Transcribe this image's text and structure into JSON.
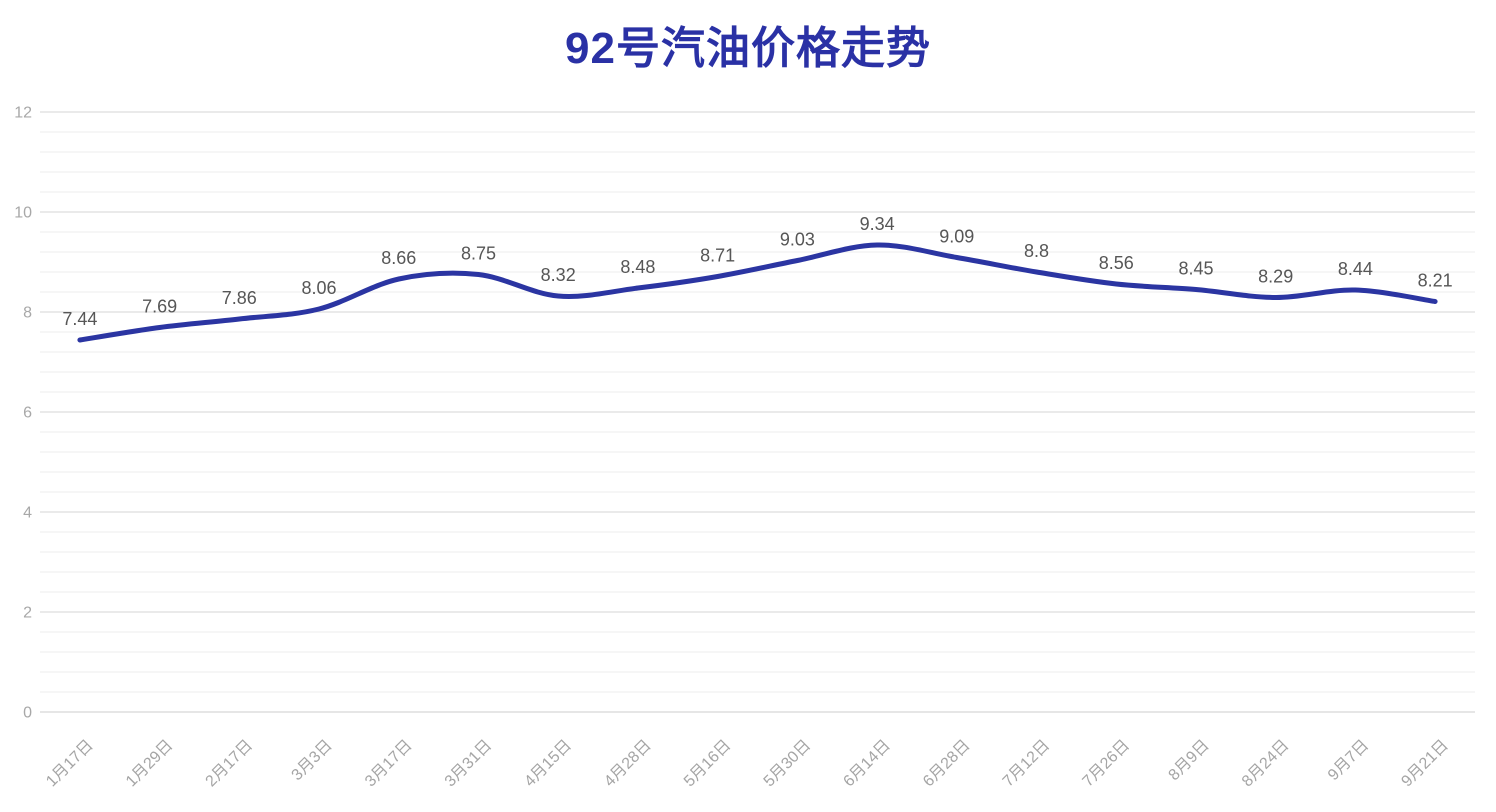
{
  "chart_data": {
    "type": "line",
    "title": "92号汽油价格走势",
    "categories": [
      "1月17日",
      "1月29日",
      "2月17日",
      "3月3日",
      "3月17日",
      "3月31日",
      "4月15日",
      "4月28日",
      "5月16日",
      "5月30日",
      "6月14日",
      "6月28日",
      "7月12日",
      "7月26日",
      "8月9日",
      "8月24日",
      "9月7日",
      "9月21日"
    ],
    "values": [
      7.44,
      7.69,
      7.86,
      8.06,
      8.66,
      8.75,
      8.32,
      8.48,
      8.71,
      9.03,
      9.34,
      9.09,
      8.8,
      8.56,
      8.45,
      8.29,
      8.44,
      8.21
    ],
    "data_labels": [
      "7.44",
      "7.69",
      "7.86",
      "8.06",
      "8.66",
      "8.75",
      "8.32",
      "8.48",
      "8.71",
      "9.03",
      "9.34",
      "9.09",
      "8.8",
      "8.56",
      "8.45",
      "8.29",
      "8.44",
      "8.21"
    ],
    "xlabel": "",
    "ylabel": "",
    "ylim": [
      0,
      12
    ],
    "y_ticks": [
      0,
      2,
      4,
      6,
      8,
      10,
      12
    ],
    "minor_grid_step": 0.4,
    "grid": true,
    "smooth": true,
    "legend": "none",
    "x_label_rotation_deg": 45
  },
  "colors": {
    "title": "#2a31a5",
    "line": "#2b35a2",
    "grid_major": "#d4d4d4",
    "grid_minor": "#ececec",
    "axis_zero_line": "#cccccc",
    "y_tick_label": "#a8a8a8",
    "x_tick_label": "#a5a5a5",
    "data_label": "#565656",
    "background": "#ffffff"
  }
}
